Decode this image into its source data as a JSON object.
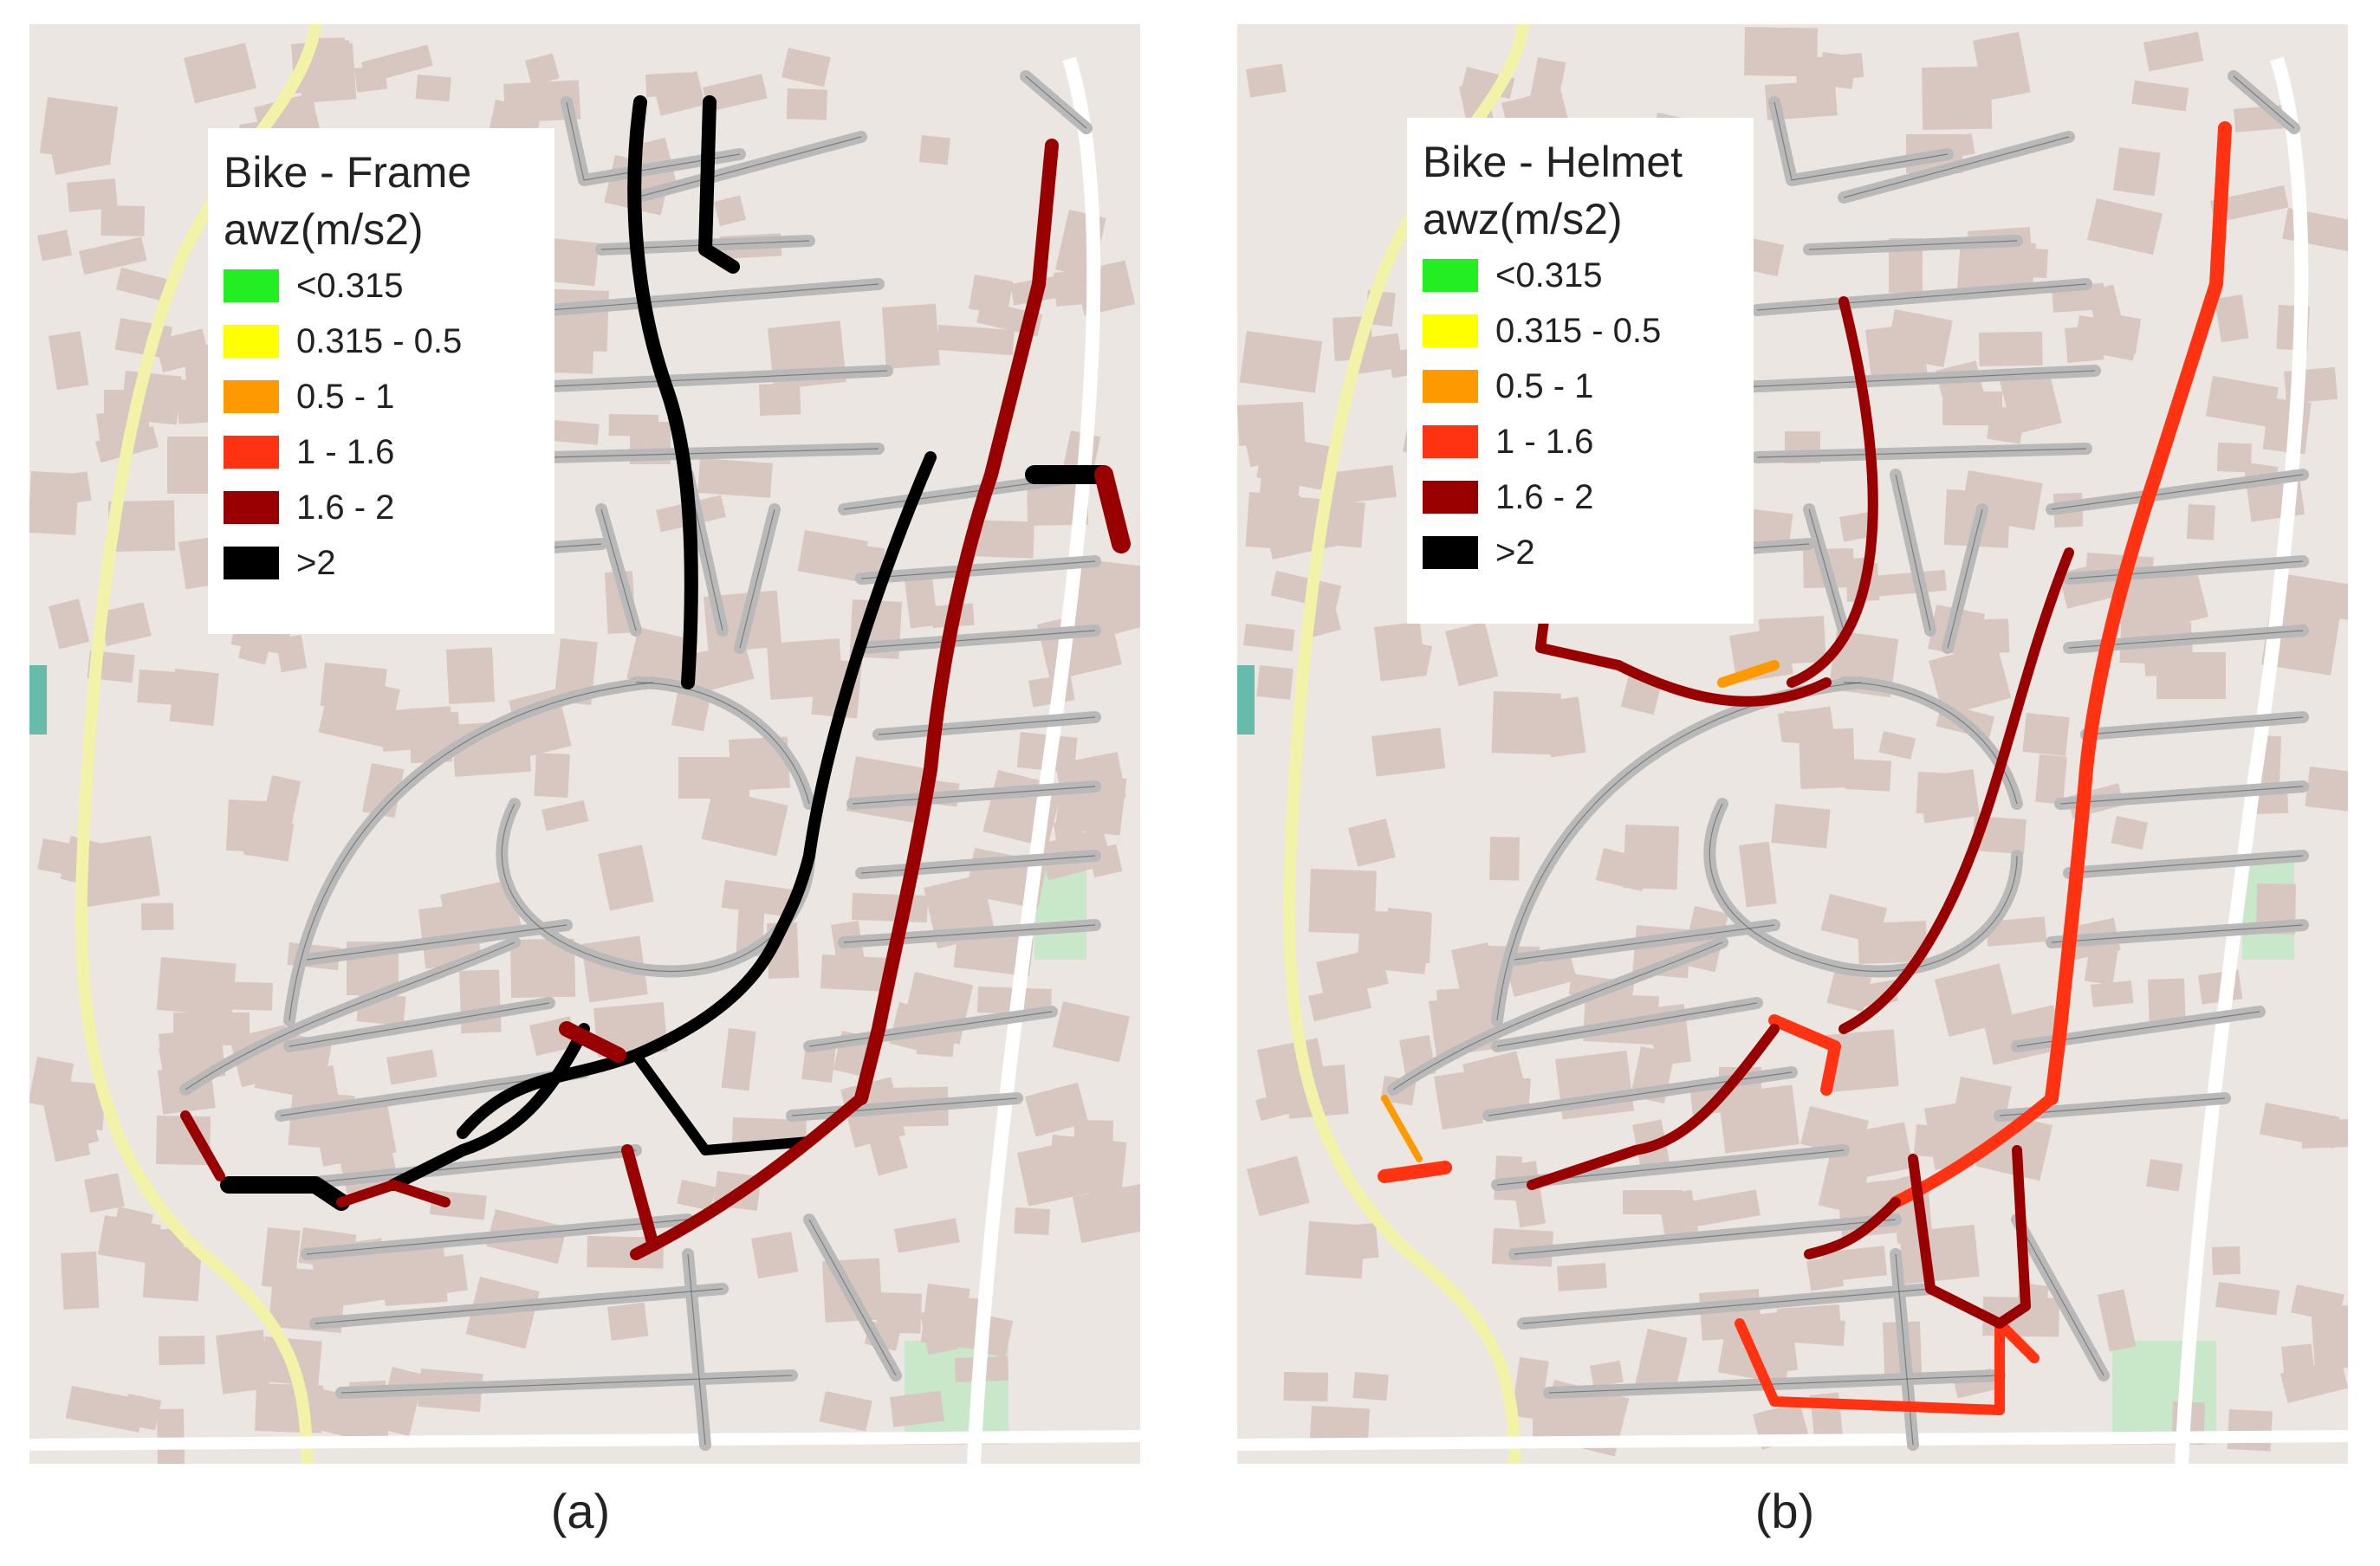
{
  "legend_classes": [
    {
      "label": "<0.315",
      "color": "#22ee22"
    },
    {
      "label": "0.315 - 0.5",
      "color": "#ffff00"
    },
    {
      "label": "0.5 - 1",
      "color": "#ff9900"
    },
    {
      "label": "1 - 1.6",
      "color": "#ff3311"
    },
    {
      "label": "1.6 - 2",
      "color": "#990000"
    },
    {
      "label": ">2",
      "color": "#000000"
    }
  ],
  "panels": [
    {
      "caption": "(a)",
      "legend_title_line1": "Bike - Frame",
      "legend_title_line2": "awz(m/s2)",
      "dominant_class": ">2",
      "secondary_class": "1.6 - 2"
    },
    {
      "caption": "(b)",
      "legend_title_line1": "Bike - Helmet",
      "legend_title_line2": "awz(m/s2)",
      "dominant_class": "1 - 1.6",
      "secondary_class": "1.6 - 2"
    }
  ],
  "colors": {
    "map_background": "#ebe6e1",
    "building": "#d8c6c0",
    "unsurveyed_street": "#b9b9b9",
    "major_road": "#f2f2a8",
    "park": "#c9e7c9"
  }
}
